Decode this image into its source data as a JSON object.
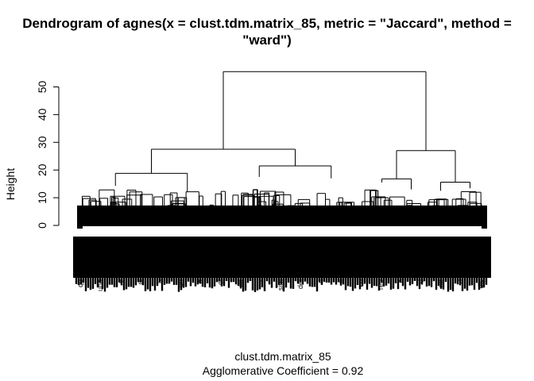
{
  "chart_data": {
    "type": "dendrogram",
    "title_line1": "Dendrogram of  agnes(x = clust.tdm.matrix_85, metric = \"Jaccard\", method =",
    "title_line2": "\"ward\")",
    "xlabel": "clust.tdm.matrix_85",
    "ylabel": "Height",
    "sublabel": "Agglomerative Coefficient =  0.92",
    "yticks": [
      0,
      10,
      20,
      30,
      40,
      50
    ],
    "ylim": [
      0,
      55
    ],
    "root_height": 55.5,
    "main_clusters": [
      {
        "height": 27.5,
        "children": [
          {
            "height": 18.8,
            "children": [
              {
                "height": 14.3
              },
              {
                "height": 12.0
              }
            ]
          },
          {
            "height": 21.5,
            "children": [
              {
                "height": 17.5
              },
              {
                "height": 17.0
              }
            ]
          }
        ]
      },
      {
        "height": 27.0,
        "children": [
          {
            "height": 16.8,
            "children": [
              {
                "height": 15.5
              },
              {
                "height": 13.0
              }
            ]
          },
          {
            "height": 15.6,
            "children": [
              {
                "height": 12.5
              },
              {
                "height": 13.4
              }
            ]
          }
        ]
      }
    ],
    "visible_leaf_labels": [
      "qu",
      "und",
      "e",
      "ci",
      "h",
      "un",
      "d",
      "di",
      "co",
      "r",
      "sim",
      "del",
      "n",
      "s",
      "co",
      "rep",
      "c",
      "d",
      "ne",
      "d",
      "dis"
    ]
  },
  "colors": {
    "ink": "#000000",
    "background": "#ffffff"
  }
}
